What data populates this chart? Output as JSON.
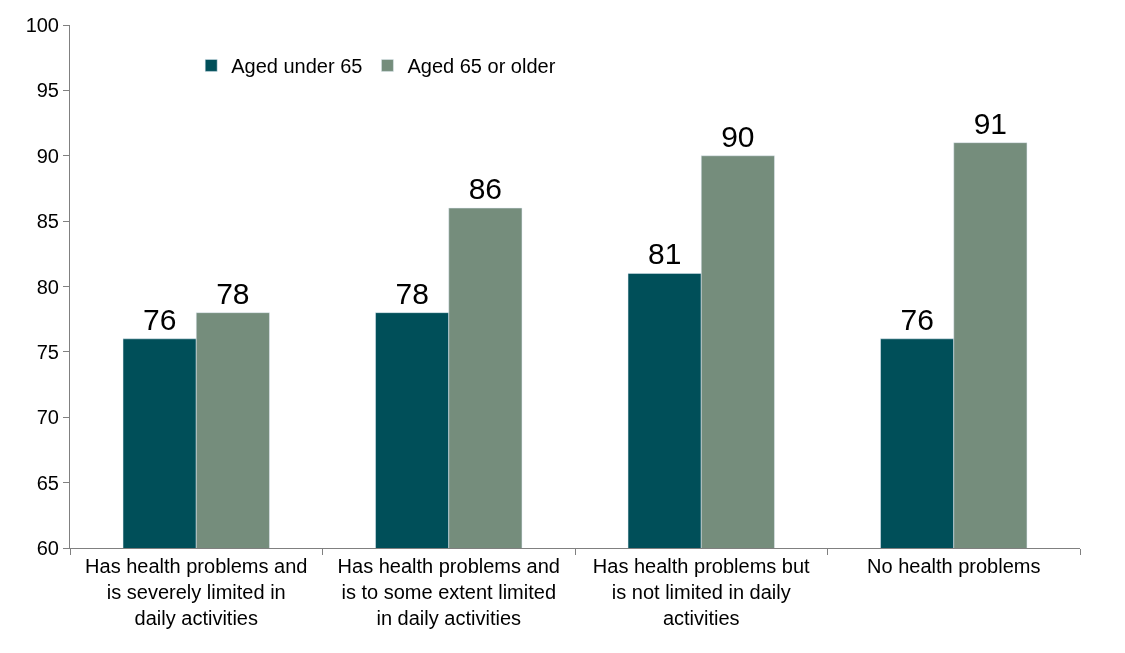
{
  "chart_data": {
    "type": "bar",
    "categories": [
      "Has health problems and is severely limited in daily activities",
      "Has health problems and is to some extent limited in daily activities",
      "Has health problems but is not limited in daily activities",
      "No health problems"
    ],
    "series": [
      {
        "name": "Aged under 65",
        "color": "#004f59",
        "values": [
          76,
          78,
          81,
          76
        ]
      },
      {
        "name": "Aged 65 or older",
        "color": "#758d7c",
        "values": [
          78,
          86,
          90,
          91
        ]
      }
    ],
    "ylim": [
      60,
      100
    ],
    "yticks": [
      60,
      65,
      70,
      75,
      80,
      85,
      90,
      95,
      100
    ],
    "data_labels": true,
    "legend": "top left"
  }
}
